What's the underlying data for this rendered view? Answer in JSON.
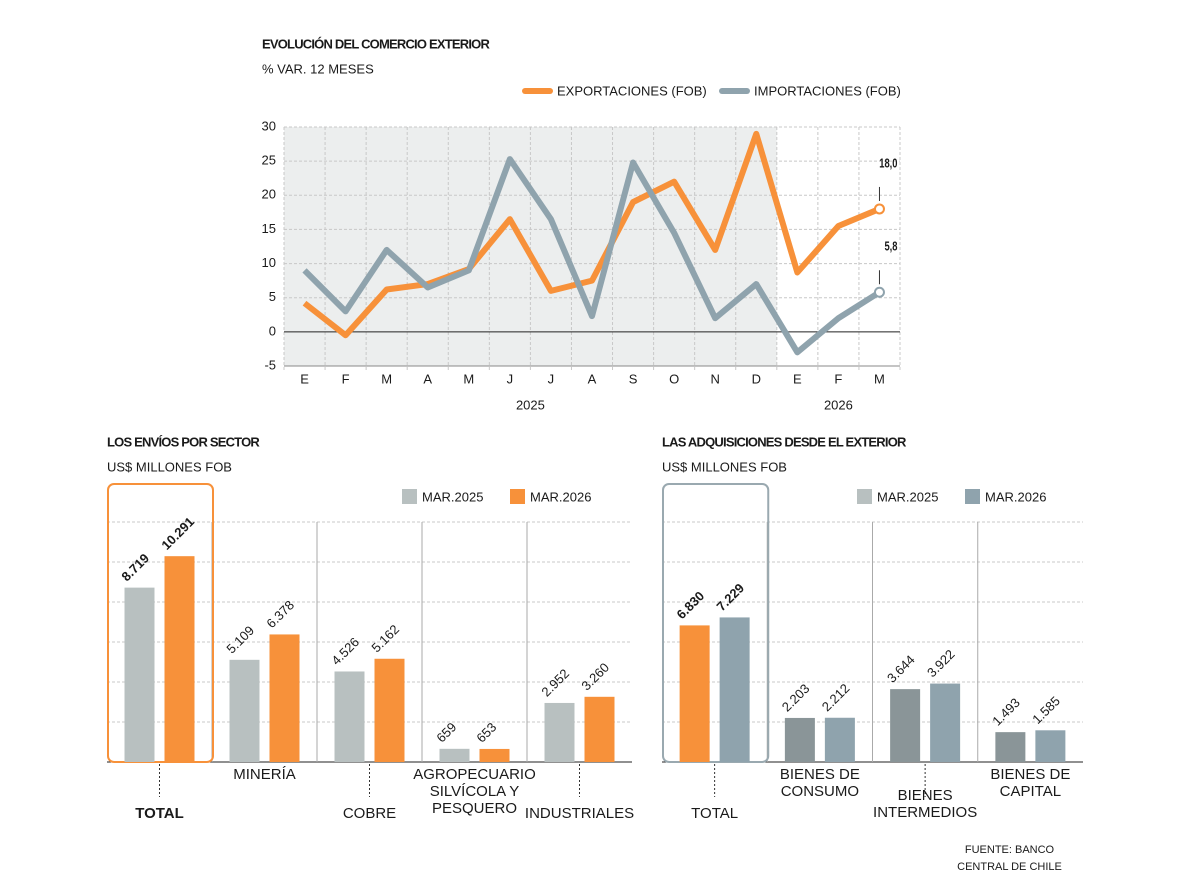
{
  "chart_data": [
    {
      "type": "line",
      "title": "EVOLUCIÓN DEL COMERCIO EXTERIOR",
      "subtitle": "% VAR. 12 MESES",
      "categories": [
        "E",
        "F",
        "M",
        "A",
        "M",
        "J",
        "J",
        "A",
        "S",
        "O",
        "N",
        "D",
        "E",
        "F",
        "M"
      ],
      "groups": [
        {
          "label": "2025",
          "count": 12
        },
        {
          "label": "2026",
          "count": 3
        }
      ],
      "series": [
        {
          "name": "EXPORTACIONES (FOB)",
          "color": "#f7913a",
          "values": [
            4.2,
            -0.5,
            6.2,
            7,
            9.2,
            16.5,
            6,
            7.5,
            19,
            22,
            12,
            29,
            8.7,
            15.5,
            18.0
          ],
          "value_labels": [
            null,
            null,
            null,
            null,
            null,
            null,
            null,
            null,
            null,
            null,
            null,
            null,
            null,
            null,
            "18,0"
          ],
          "label_color": "#f7913a"
        },
        {
          "name": "IMPORTACIONES (FOB)",
          "color": "#8fa3ad",
          "values": [
            9,
            3,
            12,
            6.5,
            9,
            25.3,
            16.5,
            2.3,
            24.8,
            14.5,
            2,
            7,
            -3,
            2,
            5.8
          ],
          "value_labels": [
            null,
            null,
            null,
            null,
            null,
            null,
            null,
            null,
            null,
            null,
            null,
            null,
            null,
            null,
            "5,8"
          ],
          "label_color": "#5d7480"
        }
      ],
      "ylim": [
        -5,
        30
      ],
      "yticks": [
        -5,
        0,
        5,
        10,
        15,
        20,
        25,
        30
      ],
      "grid": true,
      "legend": "top-right"
    },
    {
      "type": "bar",
      "title": "LOS ENVÍOS POR SECTOR",
      "subtitle": "US$ MILLONES FOB",
      "categories": [
        "TOTAL",
        "MINERÍA",
        "COBRE",
        "AGROPECUARIO\nSILVÍCOLA Y\nPESQUERO",
        "INDUSTRIALES"
      ],
      "series": [
        {
          "name": "MAR.2025",
          "color": "#b8c0c0",
          "values": [
            8719,
            5109,
            4526,
            659,
            2952
          ],
          "value_labels": [
            "8.719",
            "5.109",
            "4.526",
            "659",
            "2.952"
          ]
        },
        {
          "name": "MAR.2026",
          "color": "#f7913a",
          "values": [
            10291,
            6378,
            5162,
            653,
            3260
          ],
          "value_labels": [
            "10.291",
            "6.378",
            "5.162",
            "653",
            "3.260"
          ]
        }
      ],
      "highlight_color": "#f7913a",
      "ylim": [
        0,
        12000
      ],
      "yticks": [
        0,
        2000,
        4000,
        6000,
        8000,
        10000,
        12000
      ],
      "grid": true,
      "legend": "top-right"
    },
    {
      "type": "bar",
      "title": "LAS ADQUISICIONES DESDE EL EXTERIOR",
      "subtitle": "US$ MILLONES FOB",
      "categories": [
        "TOTAL",
        "BIENES DE\nCONSUMO",
        "BIENES\nINTERMEDIOS",
        "BIENES DE\nCAPITAL"
      ],
      "series": [
        {
          "name": "MAR.2025",
          "color": "#b8c0c0",
          "bar_colors": [
            "#f7913a",
            "#8a9598",
            "#8a9598",
            "#8a9598"
          ],
          "values": [
            6830,
            2203,
            3644,
            1493
          ],
          "value_labels": [
            "6.830",
            "2.203",
            "3.644",
            "1.493"
          ]
        },
        {
          "name": "MAR.2026",
          "color": "#8fa3ad",
          "values": [
            7229,
            2212,
            3922,
            1585
          ],
          "value_labels": [
            "7.229",
            "2.212",
            "3.922",
            "1.585"
          ]
        }
      ],
      "highlight_color": "#9aa9b0",
      "ylim": [
        0,
        12000
      ],
      "yticks": [
        0,
        2000,
        4000,
        6000,
        8000,
        10000,
        12000
      ],
      "grid": true,
      "legend": "top-right"
    }
  ],
  "footer": "FUENTE: BANCO CENTRAL DE CHILE"
}
